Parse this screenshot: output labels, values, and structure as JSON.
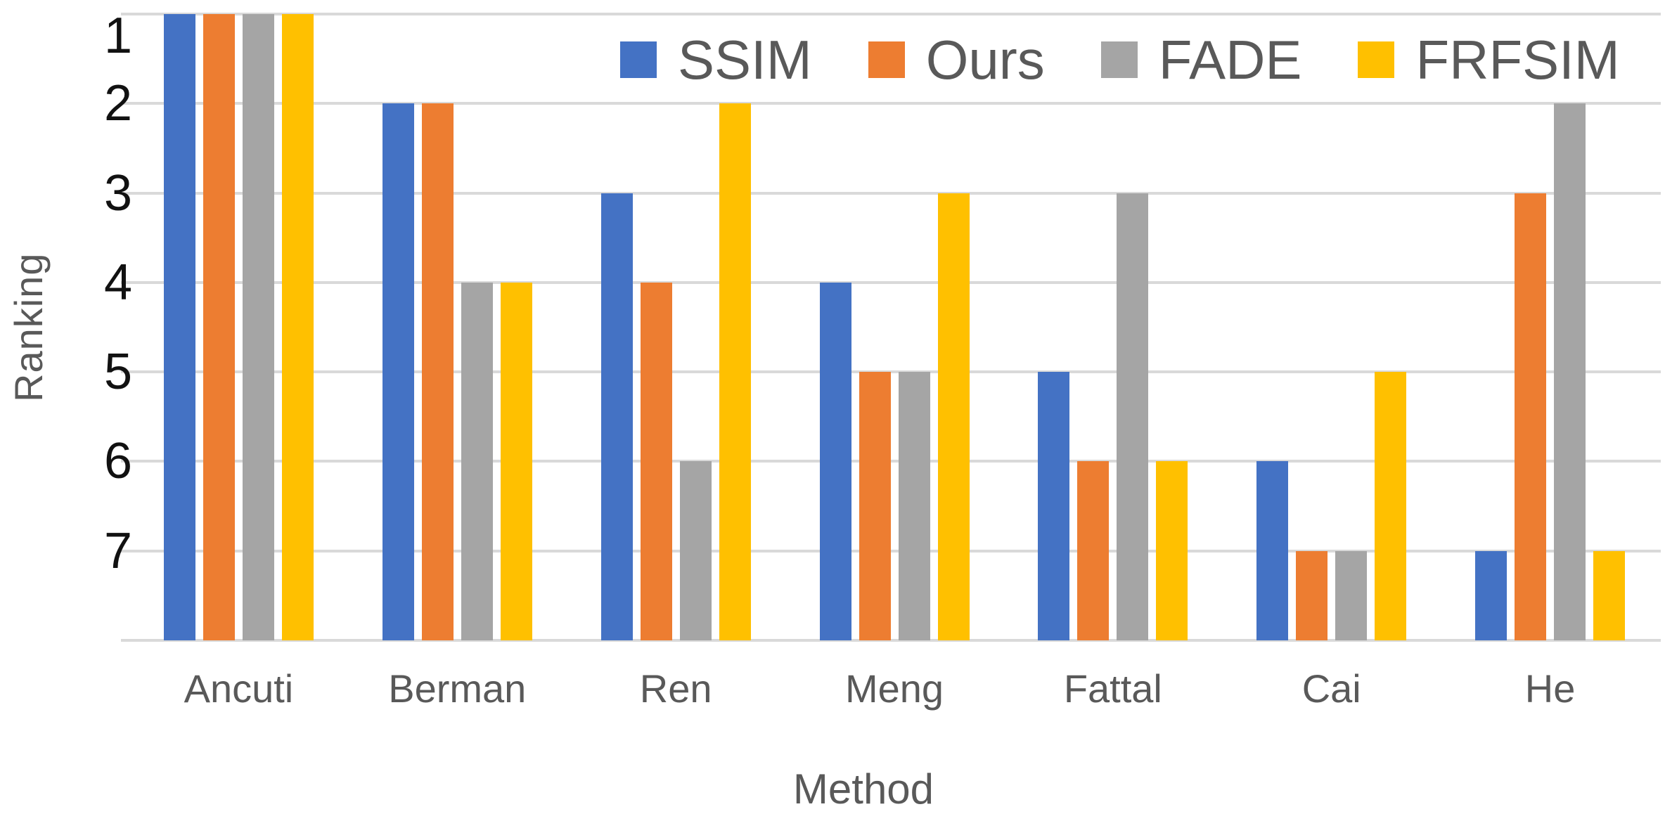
{
  "chart_data": {
    "type": "bar",
    "title": "",
    "categories": [
      "Ancuti",
      "Berman",
      "Ren",
      "Meng",
      "Fattal",
      "Cai",
      "He"
    ],
    "series": [
      {
        "name": "SSIM",
        "color": "#4472C4",
        "values": [
          1,
          2,
          3,
          4,
          5,
          6,
          7
        ]
      },
      {
        "name": "Ours",
        "color": "#ED7D31",
        "values": [
          1,
          2,
          4,
          5,
          6,
          7,
          3
        ]
      },
      {
        "name": "FADE",
        "color": "#A5A5A5",
        "values": [
          1,
          4,
          6,
          5,
          3,
          7,
          2
        ]
      },
      {
        "name": "FRFSIM",
        "color": "#FFC000",
        "values": [
          1,
          4,
          2,
          3,
          6,
          5,
          7
        ]
      }
    ],
    "xlabel": "Method",
    "ylabel": "Ranking",
    "y_ticks": [
      1,
      2,
      3,
      4,
      5,
      6,
      7
    ],
    "y_axis": {
      "reversed": true,
      "top_value": 1,
      "baseline_value": 8
    },
    "ylim_note": "rank 1 renders as tallest bar; bars rise from one unit below rank 7",
    "legend_position": "top",
    "grid": true,
    "background_color": "#FFFFFF",
    "gridline_color": "#D9D9D9",
    "tick_label_color": "#111111",
    "axis_title_color": "#595959"
  }
}
